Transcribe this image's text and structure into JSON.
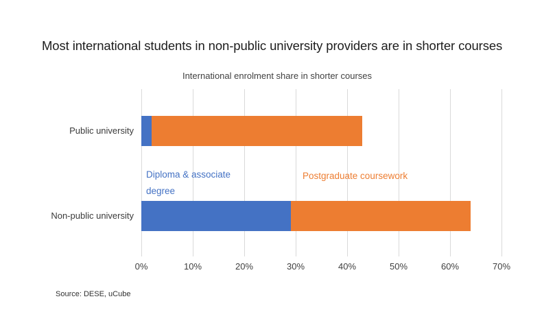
{
  "slide": {
    "title": "Most international students in non-public university providers are in shorter courses",
    "source": "Source: DESE, uCube"
  },
  "chart_data": {
    "type": "bar",
    "orientation": "horizontal",
    "stacked": true,
    "title": "International enrolment share in shorter courses",
    "categories": [
      "Public university",
      "Non-public university"
    ],
    "series": [
      {
        "name": "Diploma & associate degree",
        "color": "#4472C4",
        "values": [
          2,
          29
        ]
      },
      {
        "name": "Postgraduate coursework",
        "color": "#ED7D31",
        "values": [
          41,
          35
        ]
      }
    ],
    "xlabel": "",
    "ylabel": "",
    "xlim": [
      0,
      70
    ],
    "x_tick_labels": [
      "0%",
      "10%",
      "20%",
      "30%",
      "40%",
      "50%",
      "60%",
      "70%"
    ],
    "grid": "vertical",
    "gridline_color": "#D9D9D9",
    "legend": "series labels shown between bars, colored by series"
  }
}
